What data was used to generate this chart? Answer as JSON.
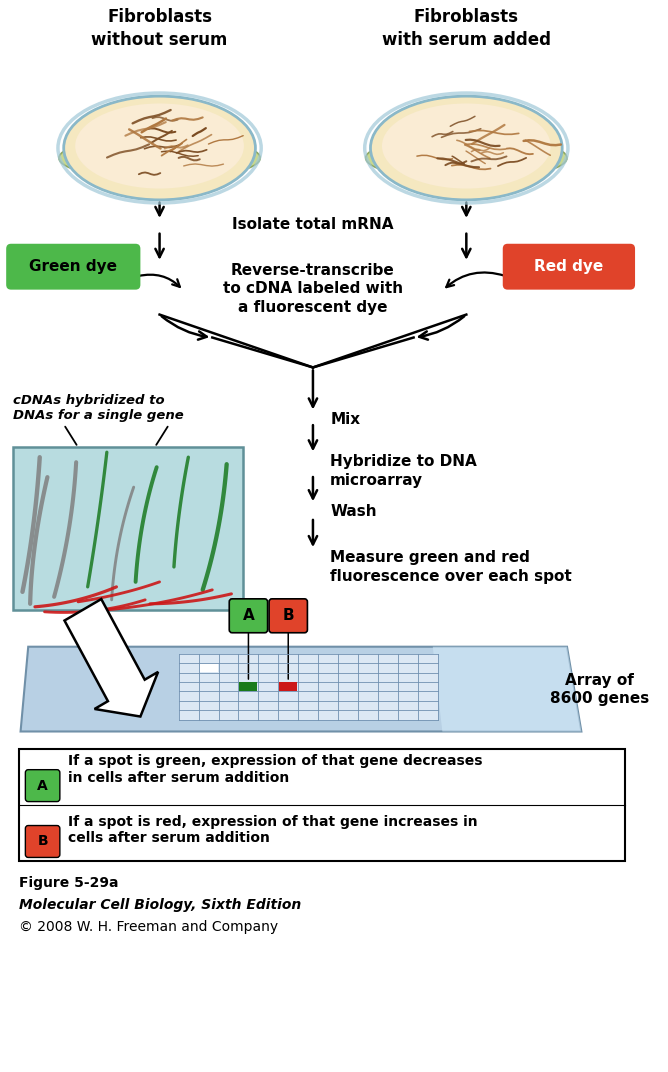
{
  "bg_color": "#ffffff",
  "title_left": "Fibroblasts\nwithout serum",
  "title_right": "Fibroblasts\nwith serum added",
  "step1": "Isolate total mRNA",
  "step2": "Reverse-transcribe\nto cDNA labeled with\na fluorescent dye",
  "step3": "Mix",
  "step4": "Hybridize to DNA\nmicroarray",
  "step5": "Wash",
  "step6": "Measure green and red\nfluorescence over each spot",
  "green_dye_label": "Green dye",
  "red_dye_label": "Red dye",
  "green_dye_color": "#4db84a",
  "red_dye_color": "#e0432a",
  "cdna_label": "cDNAs hybridized to\nDNAs for a single gene",
  "array_label": "Array of\n8600 genes",
  "legend_A_color": "#4db84a",
  "legend_B_color": "#e0432a",
  "legend_A_text": "If a spot is green, expression of that gene decreases\nin cells after serum addition",
  "legend_B_text": "If a spot is red, expression of that gene increases in\ncells after serum addition",
  "figure_caption": "Figure 5-29a",
  "book_title": "Molecular Cell Biology, Sixth Edition",
  "copyright": "© 2008 W. H. Freeman and Company",
  "dish_fill": "#f5e8c0",
  "dish_edge": "#8ab8c8",
  "dish_rim_fill": "#c8d8a0",
  "chip_fill": "#c0d8e8",
  "chip_edge": "#7090a8",
  "grid_color": "#7090b0",
  "inset_fill": "#b8dce0",
  "inset_edge": "#609098"
}
